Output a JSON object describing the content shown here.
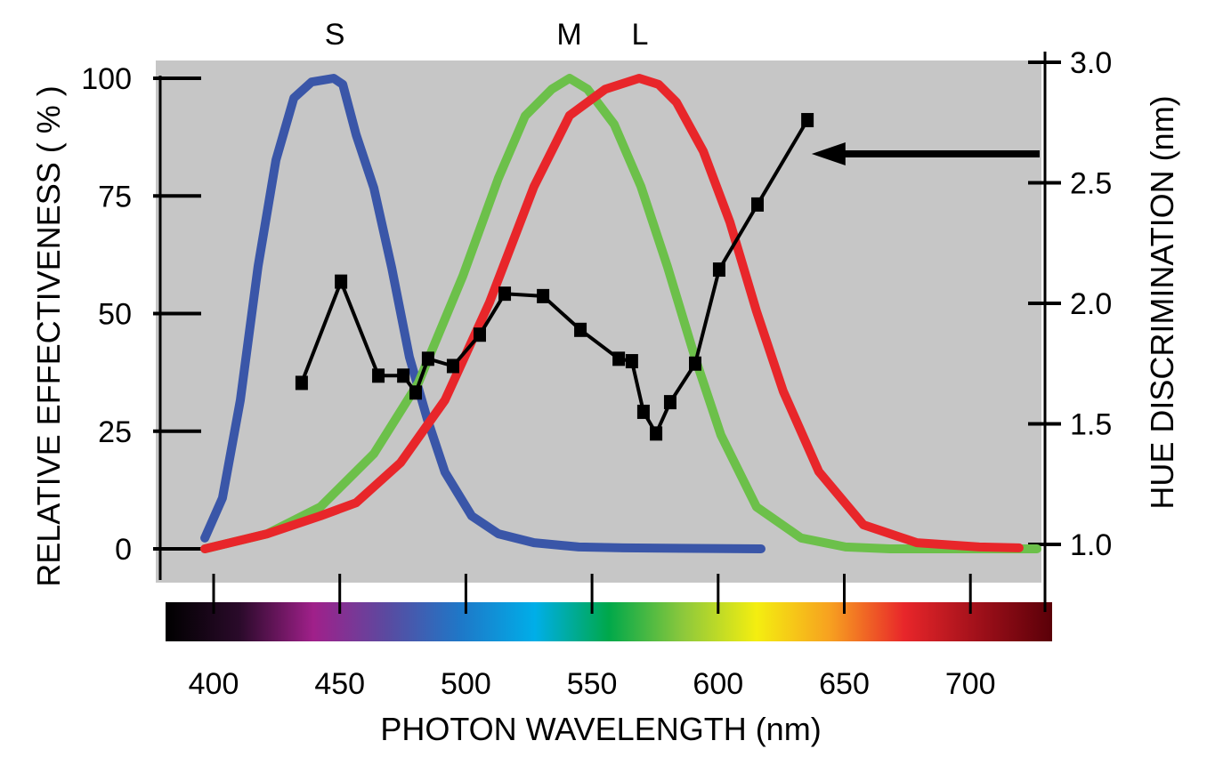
{
  "chart_data": {
    "type": "line",
    "xlabel": "PHOTON WAVELENGTH  (nm)",
    "ylabel_left": "RELATIVE EFFECTIVENESS  ( % )",
    "ylabel_right": "HUE  DISCRIMINATION  (nm)",
    "xlim": [
      378,
      728
    ],
    "ylim_left": [
      0,
      100
    ],
    "ylim_right": [
      1.0,
      3.0
    ],
    "x_ticks": [
      400,
      450,
      500,
      550,
      600,
      650,
      700
    ],
    "y_ticks_left": [
      0,
      25,
      50,
      75,
      100
    ],
    "y_ticks_right": [
      "1.0",
      "1.5",
      "2.0",
      "2.5",
      "3.0"
    ],
    "grid": false,
    "background": "#c6c6c6",
    "peak_labels": [
      {
        "text": "S",
        "x": 448
      },
      {
        "text": "M",
        "x": 541
      },
      {
        "text": "L",
        "x": 569
      }
    ],
    "series": [
      {
        "name": "S",
        "axis": "left",
        "color": "#3a56a8",
        "x": [
          396.5,
          403.5,
          410.6,
          417.6,
          424.7,
          431.8,
          438.8,
          447.6,
          451.2,
          456.5,
          463.5,
          470.6,
          477.6,
          484.7,
          491.7,
          502.3,
          512.9,
          527,
          544.7,
          562.3,
          617
        ],
        "y": [
          2.3,
          10.8,
          31.6,
          60,
          82.6,
          95.8,
          99.2,
          100,
          98.7,
          88,
          76.7,
          59.7,
          40.8,
          27.6,
          16.3,
          7,
          3.2,
          1.3,
          0.4,
          0.2,
          0
        ]
      },
      {
        "name": "M",
        "axis": "left",
        "color": "#6cc04a",
        "x": [
          396.5,
          421.2,
          442.3,
          463.5,
          481.2,
          498.8,
          512.9,
          523.5,
          534.1,
          541.1,
          548.2,
          558.8,
          569.4,
          579.9,
          590.5,
          601.1,
          615.2,
          632.9,
          650.5,
          668.2,
          726.4
        ],
        "y": [
          0,
          3.2,
          8.9,
          20.2,
          35.3,
          58,
          78.8,
          92,
          97.7,
          100,
          97.7,
          90.2,
          77,
          60,
          41.2,
          24.2,
          8.9,
          2.3,
          0.4,
          0,
          0
        ]
      },
      {
        "name": "L",
        "axis": "left",
        "color": "#e8262a",
        "x": [
          396.5,
          421.2,
          442.3,
          456.5,
          474.1,
          491.7,
          509.4,
          527,
          541.1,
          555.3,
          568.7,
          576.4,
          583.5,
          594.1,
          604.7,
          615.2,
          625.8,
          639.9,
          657.6,
          678.8,
          703.5,
          719.3
        ],
        "y": [
          0,
          3.2,
          7,
          9.8,
          18.3,
          31.6,
          52.4,
          77,
          92.1,
          97.7,
          100,
          98.7,
          94.9,
          84.5,
          69.4,
          50.5,
          33.5,
          16.4,
          5.1,
          1.3,
          0.4,
          0.2
        ]
      },
      {
        "axis": "right",
        "color": "#000000",
        "markers": "square",
        "x": [
          434.9,
          450.5,
          465.3,
          475.2,
          480.1,
          485.0,
          494.9,
          505.5,
          515.4,
          530.6,
          545.4,
          560.6,
          565.8,
          570.4,
          575.4,
          581.0,
          590.9,
          600.4,
          615.6,
          635.4
        ],
        "y": [
          1.67,
          2.09,
          1.7,
          1.7,
          1.63,
          1.77,
          1.74,
          1.87,
          2.04,
          2.03,
          1.89,
          1.77,
          1.76,
          1.55,
          1.46,
          1.59,
          1.75,
          2.14,
          2.41,
          2.76
        ]
      }
    ],
    "annotations": [
      {
        "type": "arrow",
        "direction": "left",
        "points_to_x": 636,
        "at_right_value": 2.62
      }
    ],
    "spectrum_bar": [
      "#000000",
      "#2a0a2a",
      "#a0208a",
      "#5a4aa0",
      "#1e78c8",
      "#00aee8",
      "#00a84a",
      "#8cc83c",
      "#f4ee10",
      "#f7a020",
      "#e8262a",
      "#a0101a",
      "#5a0008"
    ]
  }
}
